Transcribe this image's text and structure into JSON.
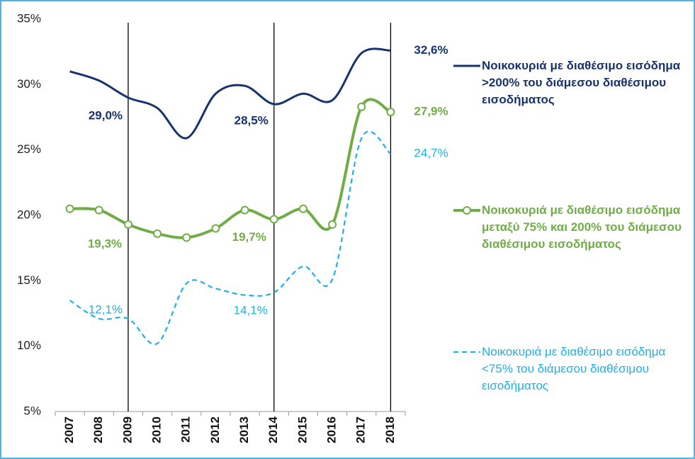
{
  "chart_data": {
    "type": "line",
    "categories": [
      "2007",
      "2008",
      "2009",
      "2010",
      "2011",
      "2012",
      "2013",
      "2014",
      "2015",
      "2016",
      "2017",
      "2018"
    ],
    "ylim": [
      5,
      35
    ],
    "yticks": [
      {
        "value": 5,
        "label": "5%"
      },
      {
        "value": 10,
        "label": "10%"
      },
      {
        "value": 15,
        "label": "15%"
      },
      {
        "value": 20,
        "label": "20%"
      },
      {
        "value": 25,
        "label": "25%"
      },
      {
        "value": 30,
        "label": "30%"
      },
      {
        "value": 35,
        "label": "35%"
      }
    ],
    "vertical_lines": [
      "2009",
      "2014",
      "2018"
    ],
    "series": [
      {
        "name": "Νοικοκυριά με διαθέσιμο εισόδημα >200% του διάμεσου διαθέσιμου εισοδήματος",
        "color": "#17336b",
        "values": [
          31.0,
          30.3,
          29.0,
          28.2,
          25.9,
          29.3,
          29.9,
          28.5,
          29.3,
          28.8,
          32.4,
          32.6
        ],
        "value_labels": [
          null,
          null,
          "29,0%",
          null,
          null,
          null,
          null,
          "28,5%",
          null,
          null,
          null,
          "32,6%"
        ]
      },
      {
        "name": "Νοικοκυριά με διαθέσιμο εισόδημα μεταξύ 75% και 200% του διάμεσου διαθέσιμου εισοδήματος",
        "color": "#70ad47",
        "values": [
          20.5,
          20.4,
          19.3,
          18.6,
          18.3,
          19.0,
          20.4,
          19.7,
          20.5,
          19.3,
          28.3,
          27.9
        ],
        "value_labels": [
          null,
          null,
          "19,3%",
          null,
          null,
          null,
          null,
          "19,7%",
          null,
          null,
          null,
          "27,9%"
        ]
      },
      {
        "name": "Νοικοκυριά με διαθέσιμο εισόδημα <75% του διάμεσου διαθέσιμου εισοδήματος",
        "color": "#1fb0e6",
        "values": [
          13.5,
          12.1,
          12.1,
          10.2,
          14.8,
          14.4,
          13.9,
          14.1,
          16.1,
          15.1,
          25.9,
          24.7
        ],
        "value_labels": [
          null,
          null,
          "12,1%",
          null,
          null,
          null,
          null,
          "14,1%",
          null,
          null,
          null,
          "24,7%"
        ]
      }
    ]
  }
}
